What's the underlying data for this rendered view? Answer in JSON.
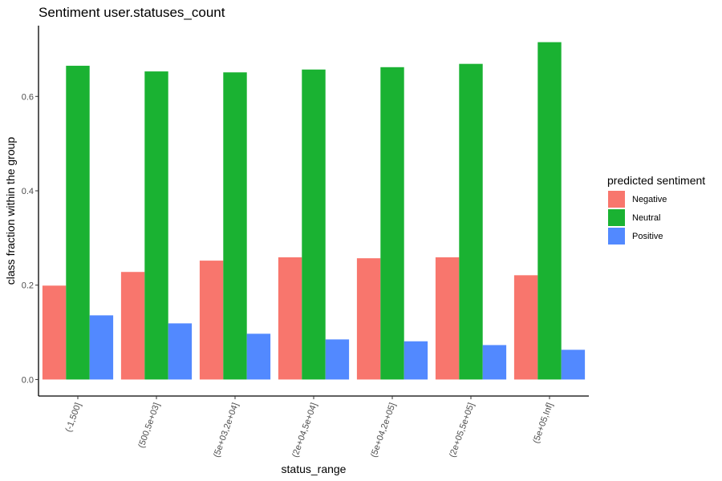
{
  "chart_data": {
    "type": "bar",
    "title": "Sentiment user.statuses_count",
    "xlabel": "status_range",
    "ylabel": "class fraction within the group",
    "categories": [
      "(-1,500]",
      "(500,5e+03]",
      "(5e+03,2e+04]",
      "(2e+04,5e+04]",
      "(5e+04,2e+05]",
      "(2e+05,5e+05]",
      "(5e+05,Inf]"
    ],
    "series": [
      {
        "name": "Negative",
        "color": "#F8766D",
        "values": [
          0.199,
          0.228,
          0.252,
          0.259,
          0.257,
          0.259,
          0.221
        ]
      },
      {
        "name": "Neutral",
        "color": "#1AB232",
        "values": [
          0.665,
          0.653,
          0.651,
          0.657,
          0.662,
          0.669,
          0.715
        ]
      },
      {
        "name": "Positive",
        "color": "#5289FF",
        "values": [
          0.136,
          0.119,
          0.097,
          0.085,
          0.081,
          0.073,
          0.063
        ]
      }
    ],
    "ylim": [
      -0.035,
      0.75
    ],
    "yticks": [
      "0.0",
      "0.2",
      "0.4",
      "0.6"
    ],
    "ytick_values": [
      0,
      0.2,
      0.4,
      0.6
    ],
    "legend": {
      "title": "predicted sentiment",
      "position": "right"
    },
    "grid": false
  }
}
